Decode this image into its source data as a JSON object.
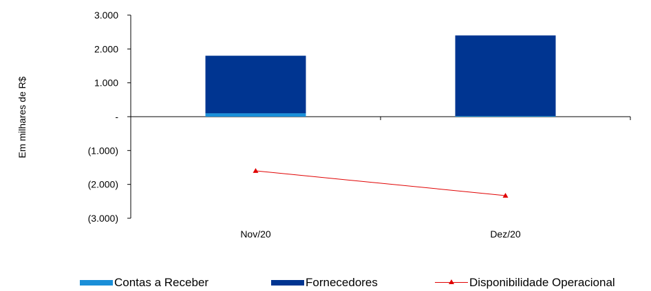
{
  "chart_data": {
    "type": "bar",
    "categories": [
      "Nov/20",
      "Dez/20"
    ],
    "series": [
      {
        "name": "Contas a Receber",
        "kind": "bar",
        "values": [
          100,
          20
        ],
        "color": "#1a8fd8"
      },
      {
        "name": "Fornecedores",
        "kind": "bar",
        "values": [
          1700,
          2380
        ],
        "color": "#003591"
      },
      {
        "name": "Disponibilidade Operacional",
        "kind": "line",
        "values": [
          -1600,
          -2330
        ],
        "color": "#e00000"
      }
    ],
    "stacked": true,
    "ylabel": "Em milhares de R$",
    "ylim": [
      -3000,
      3000
    ],
    "yticks": [
      3000,
      2000,
      1000,
      0,
      -1000,
      -2000,
      -3000
    ],
    "ytick_labels": [
      "3.000",
      "2.000",
      "1.000",
      "-",
      "(1.000)",
      "(2.000)",
      "(3.000)"
    ],
    "grid": false,
    "legend_position": "bottom"
  }
}
